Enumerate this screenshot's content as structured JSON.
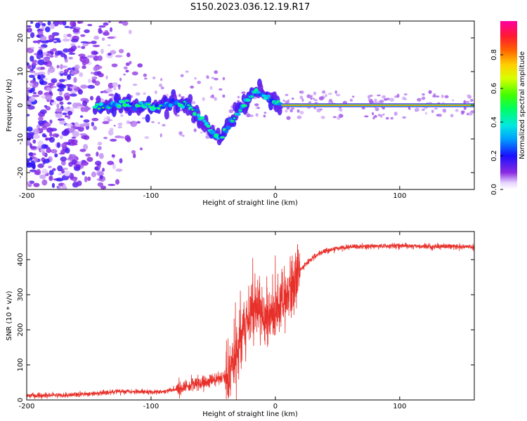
{
  "title": "S150.2023.036.12.19.R17",
  "colors": {
    "snr_line": "#e8302a",
    "frame": "#000000",
    "background": "#ffffff"
  },
  "chart_data": [
    {
      "type": "heatmap",
      "name": "spectrogram",
      "xlabel": "Height of straight line (km)",
      "ylabel": "Frequency (Hz)",
      "xlim": [
        -200,
        160
      ],
      "ylim": [
        -25,
        25
      ],
      "xticks": [
        -200,
        -100,
        0,
        100
      ],
      "xtick_labels": [
        "-200",
        "-100",
        "0",
        "100"
      ],
      "yticks": [
        -20,
        -10,
        0,
        10,
        20
      ],
      "ytick_labels": [
        "-20",
        "-10",
        "0",
        "10",
        "20"
      ],
      "colorbar": {
        "label": "Normalized spectral amplitude",
        "range": [
          0,
          1
        ],
        "ticks": [
          0.0,
          0.2,
          0.4,
          0.6,
          0.8
        ],
        "tick_labels": [
          "0.0",
          "0.2",
          "0.4",
          "0.6",
          "0.8"
        ],
        "colormap": "gist_rainbow_r"
      },
      "features": {
        "noise_region_x": [
          -200,
          -90
        ],
        "dip_center_x": -45,
        "dip_min_freq": -10,
        "peak_x": -15,
        "peak_freq": 4,
        "carrier_start_x": 5,
        "carrier_freq": 0
      }
    },
    {
      "type": "line",
      "name": "snr",
      "xlabel": "Height of straight line (km)",
      "ylabel": "SNR (10 * v/v)",
      "xlim": [
        -200,
        160
      ],
      "ylim": [
        0,
        480
      ],
      "xticks": [
        -200,
        -100,
        0,
        100
      ],
      "xtick_labels": [
        "-200",
        "-100",
        "0",
        "100"
      ],
      "yticks": [
        0,
        100,
        200,
        300,
        400
      ],
      "ytick_labels": [
        "0",
        "100",
        "200",
        "300",
        "400"
      ],
      "series": [
        {
          "color": "#e8302a",
          "x": [
            -200,
            -180,
            -160,
            -140,
            -120,
            -100,
            -90,
            -80,
            -70,
            -60,
            -50,
            -40,
            -35,
            -30,
            -25,
            -20,
            -15,
            -10,
            -5,
            0,
            5,
            10,
            15,
            20,
            25,
            30,
            40,
            50,
            60,
            80,
            100,
            120,
            140,
            160
          ],
          "y": [
            12,
            13,
            15,
            20,
            25,
            22,
            24,
            30,
            40,
            48,
            55,
            65,
            95,
            140,
            200,
            250,
            270,
            250,
            230,
            240,
            270,
            300,
            340,
            370,
            390,
            405,
            425,
            432,
            436,
            438,
            440,
            437,
            438,
            436
          ]
        }
      ]
    }
  ]
}
